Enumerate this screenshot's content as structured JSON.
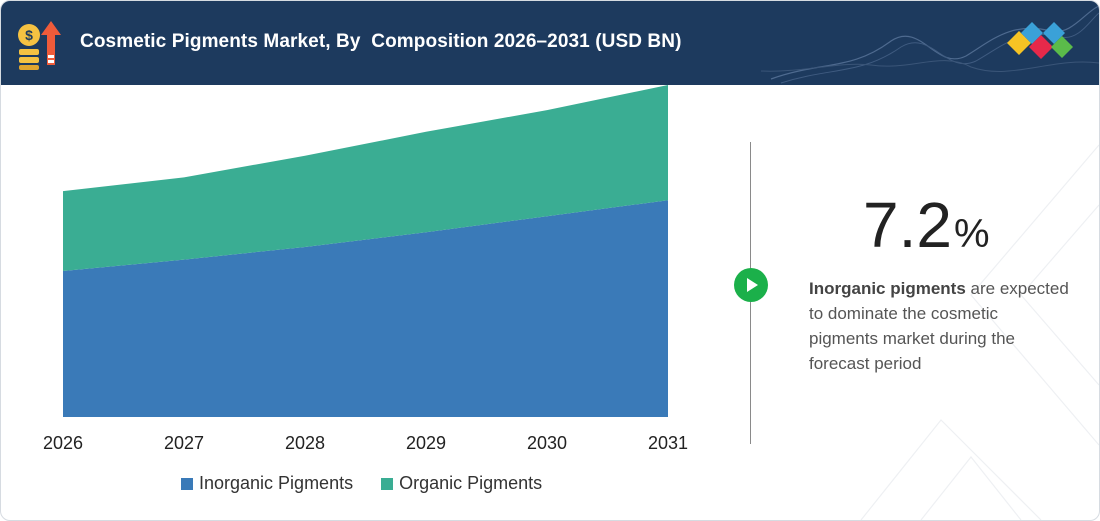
{
  "header": {
    "title": "Cosmetic Pigments Market, By  Composition 2026–2031 (USD BN)"
  },
  "highlight": {
    "value": "7.2",
    "unit": "%",
    "bold_text": "Inorganic pigments",
    "text": " are expected to dominate the cosmetic pigments market during the forecast period"
  },
  "legend": {
    "items": [
      {
        "label": "Inorganic Pigments",
        "color": "#3a7ab8"
      },
      {
        "label": "Organic Pigments",
        "color": "#3aad93"
      }
    ]
  },
  "icons": {
    "header": "money-growth-icon",
    "logo": "diamond-logo-icon",
    "action": "play-icon"
  },
  "chart_data": {
    "type": "area",
    "stacked": true,
    "title": "Cosmetic Pigments Market, By  Composition 2026–2031 (USD BN)",
    "x": [
      "2026",
      "2027",
      "2028",
      "2029",
      "2030",
      "2031"
    ],
    "series": [
      {
        "name": "Inorganic Pigments",
        "color": "#3a7ab8",
        "values": [
          1.28,
          1.38,
          1.49,
          1.62,
          1.76,
          1.9
        ]
      },
      {
        "name": "Organic Pigments",
        "color": "#3aad93",
        "values": [
          0.7,
          0.72,
          0.8,
          0.88,
          0.93,
          1.01
        ]
      }
    ],
    "ylim": [
      0,
      2.91
    ],
    "y_axis_visible": false,
    "grid": false,
    "legend_position": "bottom"
  }
}
